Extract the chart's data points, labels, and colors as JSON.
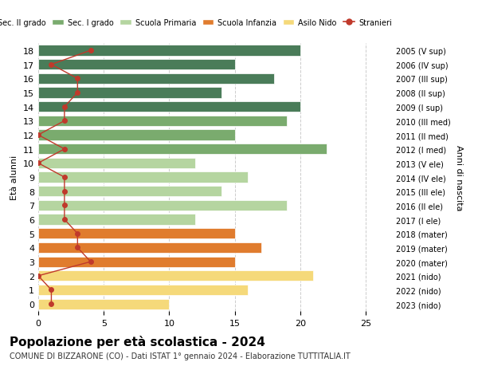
{
  "ages": [
    18,
    17,
    16,
    15,
    14,
    13,
    12,
    11,
    10,
    9,
    8,
    7,
    6,
    5,
    4,
    3,
    2,
    1,
    0
  ],
  "right_labels": [
    "2005 (V sup)",
    "2006 (IV sup)",
    "2007 (III sup)",
    "2008 (II sup)",
    "2009 (I sup)",
    "2010 (III med)",
    "2011 (II med)",
    "2012 (I med)",
    "2013 (V ele)",
    "2014 (IV ele)",
    "2015 (III ele)",
    "2016 (II ele)",
    "2017 (I ele)",
    "2018 (mater)",
    "2019 (mater)",
    "2020 (mater)",
    "2021 (nido)",
    "2022 (nido)",
    "2023 (nido)"
  ],
  "bar_values": [
    20,
    15,
    18,
    14,
    20,
    19,
    15,
    22,
    12,
    16,
    14,
    19,
    12,
    15,
    17,
    15,
    21,
    16,
    10
  ],
  "stranieri": [
    4,
    1,
    3,
    3,
    2,
    2,
    0,
    2,
    0,
    2,
    2,
    2,
    2,
    3,
    3,
    4,
    0,
    1,
    1
  ],
  "bar_colors": [
    "#4a7c59",
    "#4a7c59",
    "#4a7c59",
    "#4a7c59",
    "#4a7c59",
    "#7aab6e",
    "#7aab6e",
    "#7aab6e",
    "#b5d5a0",
    "#b5d5a0",
    "#b5d5a0",
    "#b5d5a0",
    "#b5d5a0",
    "#e07c2e",
    "#e07c2e",
    "#e07c2e",
    "#f5d97a",
    "#f5d97a",
    "#f5d97a"
  ],
  "legend_labels": [
    "Sec. II grado",
    "Sec. I grado",
    "Scuola Primaria",
    "Scuola Infanzia",
    "Asilo Nido",
    "Stranieri"
  ],
  "legend_colors": [
    "#4a7c59",
    "#7aab6e",
    "#b5d5a0",
    "#e07c2e",
    "#f5d97a",
    "#c0392b"
  ],
  "title": "Popolazione per età scolastica - 2024",
  "subtitle": "COMUNE DI BIZZARONE (CO) - Dati ISTAT 1° gennaio 2024 - Elaborazione TUTTITALIA.IT",
  "xlabel_left": "Età alunni",
  "xlabel_right": "Anni di nascita",
  "xlim": [
    0,
    27
  ],
  "ylim": [
    -0.5,
    18.5
  ],
  "stranieri_color": "#c0392b",
  "background_color": "#ffffff",
  "grid_color": "#cccccc"
}
